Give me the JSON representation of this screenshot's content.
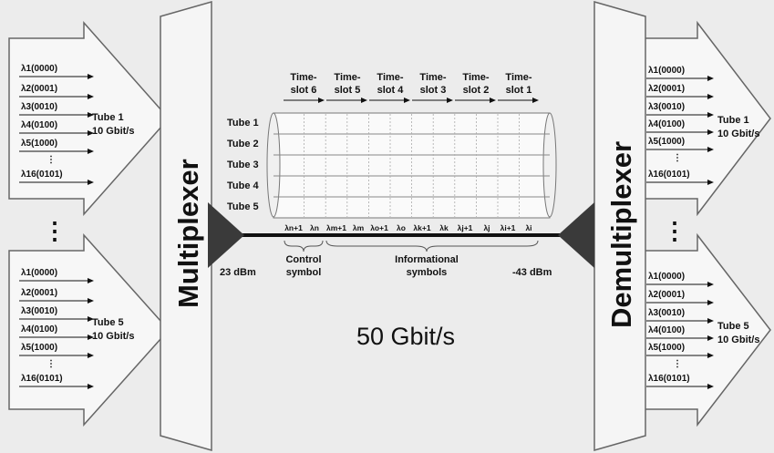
{
  "left_groups": [
    {
      "wavelengths": [
        "λ1(0000)",
        "λ2(0001)",
        "λ3(0010)",
        "λ4(0100)",
        "λ5(1000)",
        "λ16(0101)"
      ],
      "tube_name": "Tube 1",
      "rate": "10 Gbit/s"
    },
    {
      "wavelengths": [
        "λ1(0000)",
        "λ2(0001)",
        "λ3(0010)",
        "λ4(0100)",
        "λ5(1000)",
        "λ16(0101)"
      ],
      "tube_name": "Tube 5",
      "rate": "10 Gbit/s"
    }
  ],
  "right_groups": [
    {
      "wavelengths": [
        "λ1(0000)",
        "λ2(0001)",
        "λ3(0010)",
        "λ4(0100)",
        "λ5(1000)",
        "λ16(0101)"
      ],
      "tube_name": "Tube 1",
      "rate": "10 Gbit/s"
    },
    {
      "wavelengths": [
        "λ1(0000)",
        "λ2(0001)",
        "λ3(0010)",
        "λ4(0100)",
        "λ5(1000)",
        "λ16(0101)"
      ],
      "tube_name": "Tube 5",
      "rate": "10 Gbit/s"
    }
  ],
  "ellipsis_vertical": "⋮",
  "multiplexer_label": "Multiplexer",
  "demultiplexer_label": "Demultiplexer",
  "timeslots": [
    {
      "line1": "Time-",
      "line2": "slot 6"
    },
    {
      "line1": "Time-",
      "line2": "slot 5"
    },
    {
      "line1": "Time-",
      "line2": "slot 4"
    },
    {
      "line1": "Time-",
      "line2": "slot 3"
    },
    {
      "line1": "Time-",
      "line2": "slot 2"
    },
    {
      "line1": "Time-",
      "line2": "slot 1"
    }
  ],
  "tubes": [
    "Tube 1",
    "Tube 2",
    "Tube 3",
    "Tube 4",
    "Tube 5"
  ],
  "symbol_labels": [
    "λn+1",
    "λn",
    "λm+1",
    "λm",
    "λo+1",
    "λo",
    "λk+1",
    "λk",
    "λj+1",
    "λj",
    "λi+1",
    "λi"
  ],
  "control_symbol": {
    "line1": "Control",
    "line2": "symbol"
  },
  "info_symbols": {
    "line1": "Informational",
    "line2": "symbols"
  },
  "power_in": "23 dBm",
  "power_out": "-43 dBm",
  "total_rate": "50 Gbit/s",
  "colors": {
    "background": "#ececec",
    "panel": "#f7f7f7",
    "dark": "#3a3a3a",
    "fiber": "#111111"
  }
}
